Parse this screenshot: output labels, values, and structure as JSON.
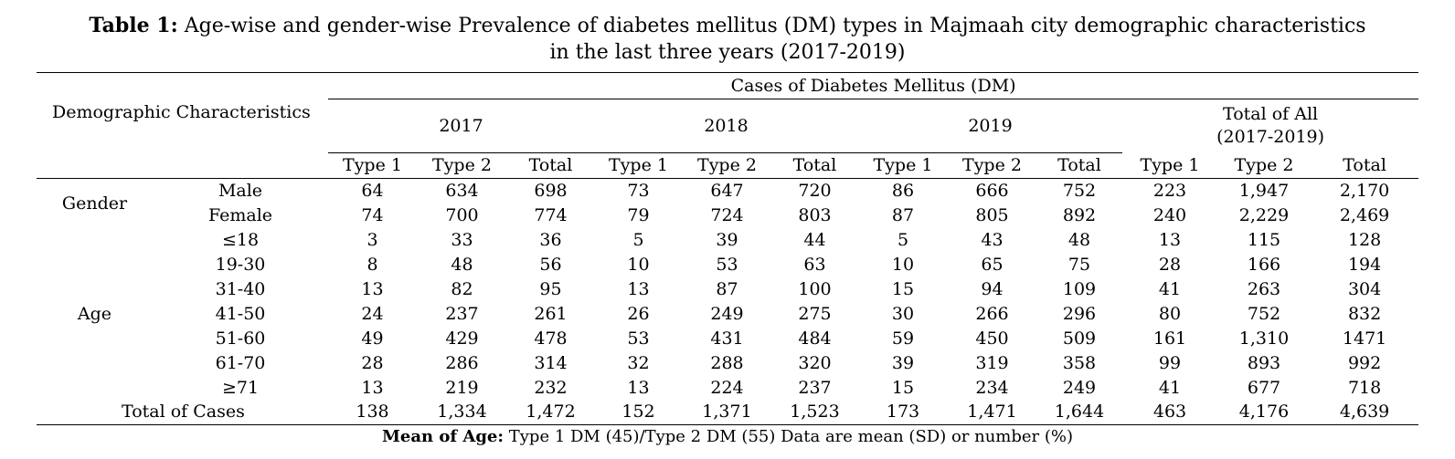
{
  "caption": {
    "label": "Table 1:",
    "text": "Age-wise and gender-wise Prevalence of diabetes mellitus (DM) types in Majmaah city demographic characteristics",
    "text_line2": "in the last three years (2017-2019)"
  },
  "header": {
    "demographic": "Demographic Characteristics",
    "cases": "Cases of Diabetes Mellitus (DM)",
    "year_2017": "2017",
    "year_2018": "2018",
    "year_2019": "2019",
    "total_all_line1": "Total of All",
    "total_all_line2": "(2017-2019)",
    "type1": "Type 1",
    "type2": "Type 2",
    "total": "Total"
  },
  "groups": {
    "gender": "Gender",
    "age": "Age"
  },
  "rows": [
    {
      "label": "Male",
      "v": [
        "64",
        "634",
        "698",
        "73",
        "647",
        "720",
        "86",
        "666",
        "752",
        "223",
        "1,947",
        "2,170"
      ]
    },
    {
      "label": "Female",
      "v": [
        "74",
        "700",
        "774",
        "79",
        "724",
        "803",
        "87",
        "805",
        "892",
        "240",
        "2,229",
        "2,469"
      ]
    },
    {
      "label": "≤18",
      "v": [
        "3",
        "33",
        "36",
        "5",
        "39",
        "44",
        "5",
        "43",
        "48",
        "13",
        "115",
        "128"
      ]
    },
    {
      "label": "19-30",
      "v": [
        "8",
        "48",
        "56",
        "10",
        "53",
        "63",
        "10",
        "65",
        "75",
        "28",
        "166",
        "194"
      ]
    },
    {
      "label": "31-40",
      "v": [
        "13",
        "82",
        "95",
        "13",
        "87",
        "100",
        "15",
        "94",
        "109",
        "41",
        "263",
        "304"
      ]
    },
    {
      "label": "41-50",
      "v": [
        "24",
        "237",
        "261",
        "26",
        "249",
        "275",
        "30",
        "266",
        "296",
        "80",
        "752",
        "832"
      ]
    },
    {
      "label": "51-60",
      "v": [
        "49",
        "429",
        "478",
        "53",
        "431",
        "484",
        "59",
        "450",
        "509",
        "161",
        "1,310",
        "1471"
      ]
    },
    {
      "label": "61-70",
      "v": [
        "28",
        "286",
        "314",
        "32",
        "288",
        "320",
        "39",
        "319",
        "358",
        "99",
        "893",
        "992"
      ]
    },
    {
      "label": "≥71",
      "v": [
        "13",
        "219",
        "232",
        "13",
        "224",
        "237",
        "15",
        "234",
        "249",
        "41",
        "677",
        "718"
      ]
    }
  ],
  "total_row": {
    "label": "Total of Cases",
    "v": [
      "138",
      "1,334",
      "1,472",
      "152",
      "1,371",
      "1,523",
      "173",
      "1,471",
      "1,644",
      "463",
      "4,176",
      "4,639"
    ]
  },
  "footnote": {
    "bold": "Mean of Age:",
    "text": " Type 1 DM (45)/Type 2 DM (55) Data are mean (SD) or number (%)"
  }
}
